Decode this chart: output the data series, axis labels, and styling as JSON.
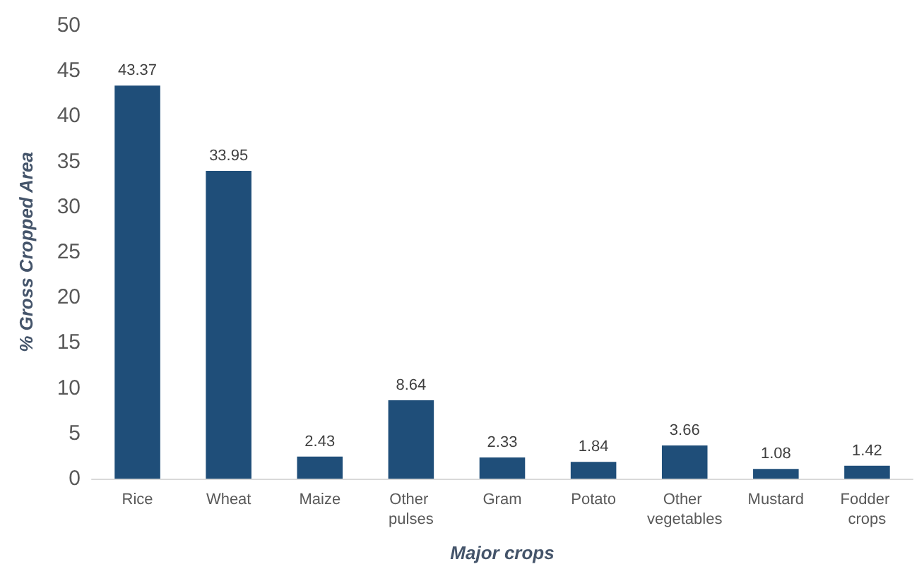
{
  "chart_data": {
    "type": "bar",
    "xlabel": "Major crops",
    "ylabel": "% Gross Cropped Area",
    "categories": [
      "Rice",
      "Wheat",
      "Maize",
      "Other pulses",
      "Gram",
      "Potato",
      "Other vegetables",
      "Mustard",
      "Fodder crops"
    ],
    "values": [
      43.37,
      33.95,
      2.43,
      8.64,
      2.33,
      1.84,
      3.66,
      1.08,
      1.42
    ],
    "color": "#1f4e79",
    "ylim": [
      0,
      50
    ],
    "yticks": [
      0,
      5,
      10,
      15,
      20,
      25,
      30,
      35,
      40,
      45,
      50
    ],
    "grid": false,
    "data_labels": true
  }
}
